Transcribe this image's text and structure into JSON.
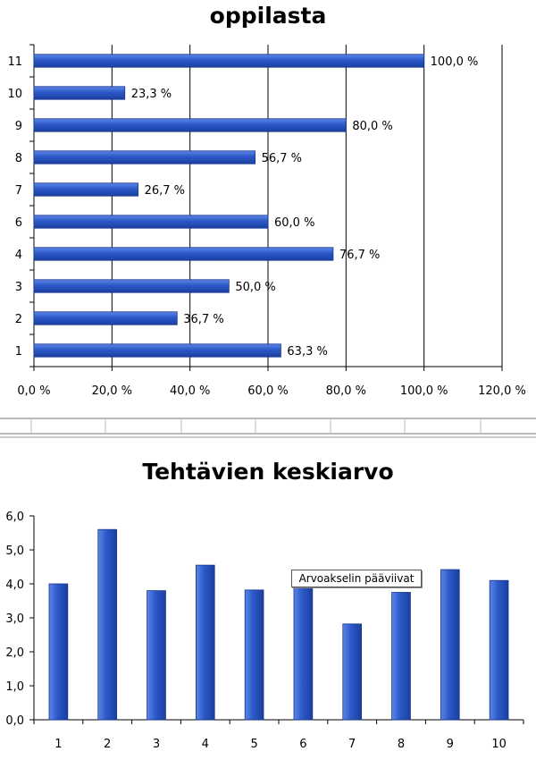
{
  "chart_data": [
    {
      "type": "bar",
      "orientation": "horizontal",
      "title": "oppilasta",
      "categories": [
        "1",
        "2",
        "3",
        "4",
        "6",
        "7",
        "8",
        "9",
        "10",
        "11"
      ],
      "values": [
        63.3,
        36.7,
        50.0,
        76.7,
        60.0,
        26.7,
        56.7,
        80.0,
        23.3,
        100.0
      ],
      "data_labels": [
        "63,3 %",
        "36,7 %",
        "50,0 %",
        "76,7 %",
        "60,0 %",
        "26,7 %",
        "56,7 %",
        "80,0 %",
        "23,3 %",
        "100,0 %"
      ],
      "xlim": [
        0,
        120
      ],
      "x_ticks": [
        0,
        20,
        40,
        60,
        80,
        100,
        120
      ],
      "x_tick_labels": [
        "0,0 %",
        "20,0 %",
        "40,0 %",
        "60,0 %",
        "80,0 %",
        "100,0 %",
        "120,0 %"
      ],
      "grid": "vertical",
      "bar_color": "#2a56c6",
      "xlabel": "",
      "ylabel": ""
    },
    {
      "type": "bar",
      "orientation": "vertical",
      "title": "Tehtävien keskiarvo",
      "categories": [
        "1",
        "2",
        "3",
        "4",
        "5",
        "6",
        "7",
        "8",
        "9",
        "10"
      ],
      "values": [
        4.0,
        5.6,
        3.8,
        4.55,
        3.82,
        3.9,
        2.82,
        3.75,
        4.42,
        4.1
      ],
      "ylim": [
        0,
        6
      ],
      "y_ticks": [
        0,
        1,
        2,
        3,
        4,
        5,
        6
      ],
      "y_tick_labels": [
        "0,0",
        "1,0",
        "2,0",
        "3,0",
        "4,0",
        "5,0",
        "6,0"
      ],
      "grid": "none",
      "bar_color": "#2a56c6",
      "tooltip": "Arvoakselin pääviivat",
      "xlabel": "",
      "ylabel": ""
    }
  ]
}
